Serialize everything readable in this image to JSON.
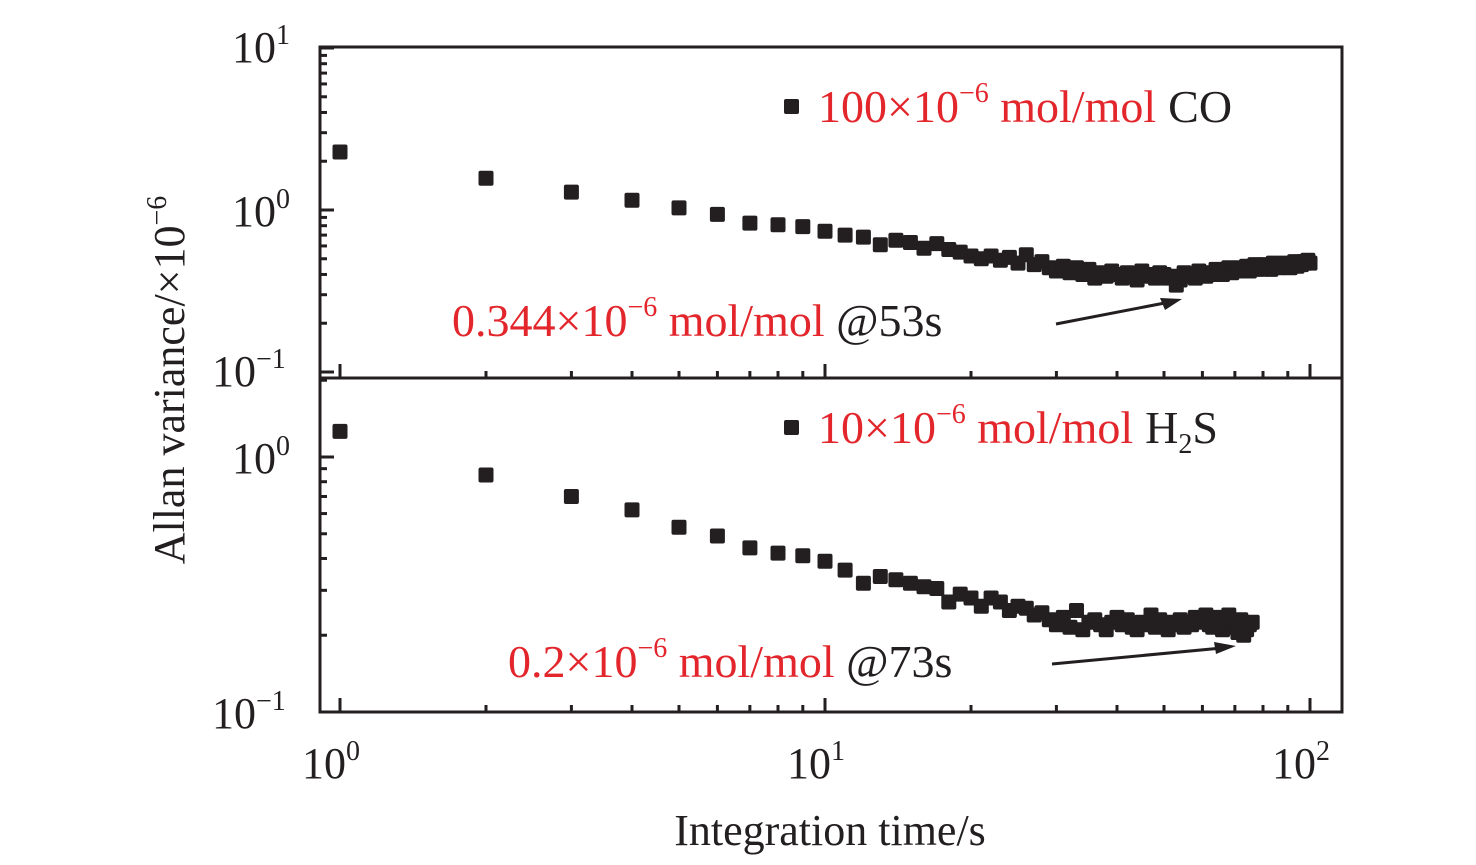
{
  "chart_data": {
    "type": "scatter",
    "xscale": "log",
    "yscale": "log",
    "xlabel": "Integration time/s",
    "ylabel_main": "Allan variance/×10",
    "ylabel_exp": "−6",
    "xlim": [
      0.9,
      110
    ],
    "x_ticks": [
      {
        "base": "10",
        "exp": "0",
        "value": 1
      },
      {
        "base": "10",
        "exp": "1",
        "value": 10
      },
      {
        "base": "10",
        "exp": "2",
        "value": 100
      }
    ],
    "marker_color": "#231f20",
    "annotation_color": "#e2262c",
    "panels": [
      {
        "name": "CO",
        "ylim": [
          0.09,
          10
        ],
        "y_ticks": [
          {
            "base": "10",
            "exp": "1",
            "value": 10
          },
          {
            "base": "10",
            "exp": "0",
            "value": 1
          },
          {
            "base": "10",
            "exp": "−1",
            "value": 0.1
          }
        ],
        "legend": {
          "position": "top-right",
          "red_part": "100×10",
          "red_exp": "−6",
          "red_unit": " mol/mol",
          "black_part": "CO",
          "black_sub": ""
        },
        "annotation": {
          "red_part": "0.344×10",
          "red_exp": "−6",
          "red_unit": " mol/mol ",
          "black_part": "@53s",
          "arrow_to_x": 53,
          "arrow_to_y": 0.344
        },
        "series": {
          "name": "100×10−6 mol/mol CO",
          "x": [
            1,
            2,
            3,
            4,
            5,
            6,
            7,
            8,
            9,
            10,
            11,
            12,
            13,
            14,
            15,
            16,
            17,
            18,
            19,
            20,
            21,
            22,
            23,
            24,
            25,
            26,
            27,
            28,
            29,
            30,
            31,
            32,
            33,
            34,
            35,
            36,
            37,
            38,
            39,
            40,
            41,
            42,
            43,
            44,
            45,
            46,
            47,
            48,
            49,
            50,
            51,
            52,
            53,
            54,
            55,
            56,
            57,
            58,
            59,
            60,
            61,
            62,
            63,
            64,
            65,
            66,
            67,
            68,
            69,
            70,
            71,
            72,
            73,
            74,
            75,
            76,
            77,
            78,
            79,
            80,
            81,
            82,
            83,
            84,
            85,
            86,
            87,
            88,
            89,
            90,
            91,
            92,
            93,
            94,
            95,
            96,
            97,
            98,
            99,
            100
          ],
          "y": [
            2.28,
            1.57,
            1.29,
            1.15,
            1.03,
            0.94,
            0.83,
            0.81,
            0.79,
            0.74,
            0.7,
            0.68,
            0.61,
            0.65,
            0.63,
            0.58,
            0.62,
            0.57,
            0.55,
            0.52,
            0.5,
            0.52,
            0.49,
            0.51,
            0.47,
            0.53,
            0.46,
            0.48,
            0.44,
            0.42,
            0.45,
            0.41,
            0.44,
            0.4,
            0.43,
            0.38,
            0.41,
            0.39,
            0.42,
            0.4,
            0.38,
            0.41,
            0.39,
            0.37,
            0.42,
            0.4,
            0.39,
            0.38,
            0.41,
            0.4,
            0.38,
            0.39,
            0.344,
            0.37,
            0.41,
            0.4,
            0.39,
            0.38,
            0.42,
            0.4,
            0.39,
            0.41,
            0.4,
            0.43,
            0.41,
            0.4,
            0.42,
            0.44,
            0.41,
            0.43,
            0.42,
            0.44,
            0.43,
            0.45,
            0.42,
            0.44,
            0.46,
            0.43,
            0.45,
            0.44,
            0.46,
            0.45,
            0.43,
            0.47,
            0.45,
            0.44,
            0.46,
            0.45,
            0.47,
            0.46,
            0.44,
            0.46,
            0.48,
            0.45,
            0.47,
            0.46,
            0.48,
            0.47,
            0.49,
            0.47
          ]
        }
      },
      {
        "name": "H2S",
        "ylim": [
          0.1,
          2.0
        ],
        "y_ticks": [
          {
            "base": "10",
            "exp": "0",
            "value": 1
          },
          {
            "base": "10",
            "exp": "−1",
            "value": 0.1
          }
        ],
        "legend": {
          "position": "top-right",
          "red_part": "10×10",
          "red_exp": "−6",
          "red_unit": " mol/mol",
          "black_part": "H",
          "black_sub": "2",
          "black_tail": "S"
        },
        "annotation": {
          "red_part": "0.2×10",
          "red_exp": "−6",
          "red_unit": " mol/mol ",
          "black_part": "@73s",
          "arrow_to_x": 73,
          "arrow_to_y": 0.2
        },
        "series": {
          "name": "10×10−6 mol/mol H2S",
          "x": [
            1,
            2,
            3,
            4,
            5,
            6,
            7,
            8,
            9,
            10,
            11,
            12,
            13,
            14,
            15,
            16,
            17,
            18,
            19,
            20,
            21,
            22,
            23,
            24,
            25,
            26,
            27,
            28,
            29,
            30,
            31,
            32,
            33,
            34,
            35,
            36,
            37,
            38,
            39,
            40,
            41,
            42,
            43,
            44,
            45,
            46,
            47,
            48,
            49,
            50,
            51,
            52,
            53,
            54,
            55,
            56,
            57,
            58,
            59,
            60,
            61,
            62,
            63,
            64,
            65,
            66,
            67,
            68,
            69,
            70,
            71,
            72,
            73,
            74,
            75,
            76
          ],
          "y": [
            1.26,
            0.85,
            0.7,
            0.62,
            0.53,
            0.49,
            0.44,
            0.42,
            0.41,
            0.39,
            0.36,
            0.32,
            0.34,
            0.33,
            0.32,
            0.31,
            0.305,
            0.27,
            0.29,
            0.28,
            0.26,
            0.28,
            0.27,
            0.25,
            0.26,
            0.255,
            0.24,
            0.245,
            0.23,
            0.22,
            0.235,
            0.215,
            0.25,
            0.21,
            0.225,
            0.23,
            0.22,
            0.21,
            0.225,
            0.235,
            0.22,
            0.23,
            0.215,
            0.21,
            0.225,
            0.22,
            0.24,
            0.215,
            0.23,
            0.22,
            0.21,
            0.225,
            0.22,
            0.23,
            0.215,
            0.225,
            0.22,
            0.235,
            0.23,
            0.225,
            0.24,
            0.22,
            0.215,
            0.23,
            0.235,
            0.21,
            0.225,
            0.24,
            0.22,
            0.215,
            0.205,
            0.23,
            0.2,
            0.21,
            0.22,
            0.225
          ]
        }
      }
    ]
  }
}
